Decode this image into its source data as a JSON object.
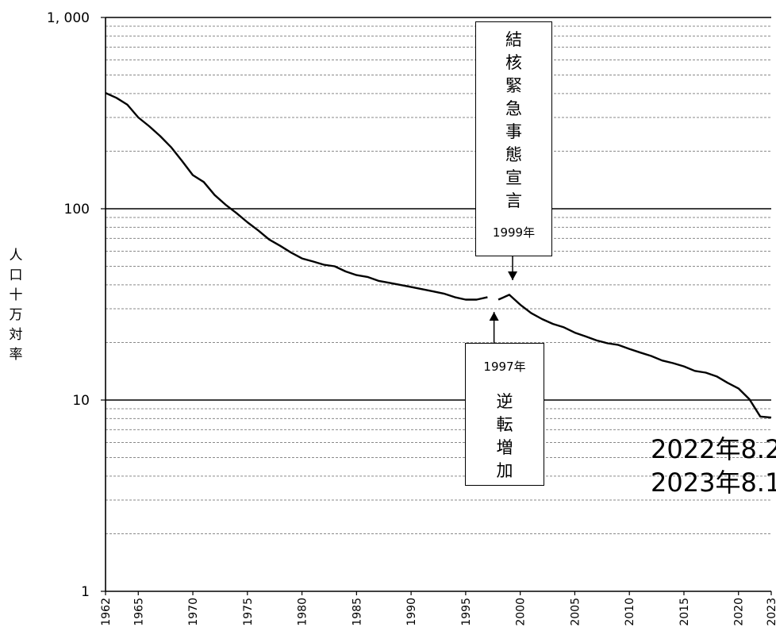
{
  "chart_data": {
    "type": "line",
    "yscale": "log",
    "ylim": [
      1,
      1000
    ],
    "xlim": [
      1962,
      2023
    ],
    "yticks": [
      1,
      10,
      100,
      1000
    ],
    "ytick_labels": [
      "1",
      "10",
      "100",
      "1, 000"
    ],
    "xticks": [
      1962,
      1965,
      1970,
      1975,
      1980,
      1985,
      1990,
      1995,
      2000,
      2005,
      2010,
      2015,
      2020,
      2023
    ],
    "ylabel": "人口十万対率",
    "grid": "horizontal, dashed minor lines",
    "color": "#000000",
    "series": [
      {
        "x": [
          1962,
          1963,
          1964,
          1965,
          1966,
          1967,
          1968,
          1969,
          1970,
          1971,
          1972,
          1973,
          1974,
          1975,
          1976,
          1977,
          1978,
          1979,
          1980,
          1981,
          1982,
          1983,
          1984,
          1985,
          1986,
          1987,
          1988,
          1989,
          1990,
          1991,
          1992,
          1993,
          1994,
          1995,
          1996,
          1997
        ],
        "y": [
          403,
          380,
          350,
          300,
          270,
          240,
          210,
          178,
          150,
          138,
          118,
          105,
          95,
          85,
          77,
          69,
          64,
          59,
          55,
          53,
          51,
          50,
          47,
          45,
          44,
          42,
          41,
          40,
          39,
          38,
          37,
          36,
          34.5,
          33.5,
          33.5,
          34.5
        ]
      },
      {
        "x": [
          1998,
          1999,
          2000,
          2001,
          2002,
          2003,
          2004,
          2005,
          2006,
          2007,
          2008,
          2009,
          2010,
          2011,
          2012,
          2013,
          2014,
          2015,
          2016,
          2017,
          2018,
          2019,
          2020,
          2021,
          2022,
          2023
        ],
        "y": [
          33.5,
          35.5,
          31.5,
          28.5,
          26.5,
          25.0,
          24.0,
          22.5,
          21.5,
          20.5,
          19.8,
          19.4,
          18.5,
          17.7,
          17.0,
          16.1,
          15.6,
          15.0,
          14.2,
          13.9,
          13.3,
          12.3,
          11.5,
          10.1,
          8.2,
          8.1
        ]
      }
    ]
  },
  "annotations": {
    "declaration_text": [
      "結",
      "核",
      "緊",
      "急",
      "事",
      "態",
      "宣",
      "言"
    ],
    "declaration_year": "1999年",
    "reversal_year": "1997年",
    "reversal_text": [
      "逆",
      "転",
      "増",
      "加"
    ],
    "note_line1": "2022年8.2",
    "note_line2": "2023年8.1"
  }
}
